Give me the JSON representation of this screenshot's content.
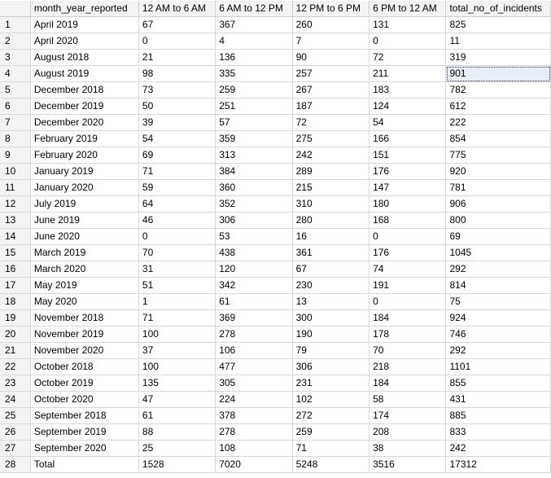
{
  "grid": {
    "columns": [
      "month_year_reported",
      "12 AM to 6 AM",
      "6 AM to 12 PM",
      "12 PM to 6 PM",
      "6 PM to 12 AM",
      "total_no_of_incidents"
    ],
    "rows": [
      {
        "n": "1",
        "cells": [
          "April 2019",
          "67",
          "367",
          "260",
          "131",
          "825"
        ]
      },
      {
        "n": "2",
        "cells": [
          "April 2020",
          "0",
          "4",
          "7",
          "0",
          "11"
        ]
      },
      {
        "n": "3",
        "cells": [
          "August 2018",
          "21",
          "136",
          "90",
          "72",
          "319"
        ]
      },
      {
        "n": "4",
        "cells": [
          "August 2019",
          "98",
          "335",
          "257",
          "211",
          "901"
        ]
      },
      {
        "n": "5",
        "cells": [
          "December 2018",
          "73",
          "259",
          "267",
          "183",
          "782"
        ]
      },
      {
        "n": "6",
        "cells": [
          "December 2019",
          "50",
          "251",
          "187",
          "124",
          "612"
        ]
      },
      {
        "n": "7",
        "cells": [
          "December 2020",
          "39",
          "57",
          "72",
          "54",
          "222"
        ]
      },
      {
        "n": "8",
        "cells": [
          "February 2019",
          "54",
          "359",
          "275",
          "166",
          "854"
        ]
      },
      {
        "n": "9",
        "cells": [
          "February 2020",
          "69",
          "313",
          "242",
          "151",
          "775"
        ]
      },
      {
        "n": "10",
        "cells": [
          "January 2019",
          "71",
          "384",
          "289",
          "176",
          "920"
        ]
      },
      {
        "n": "11",
        "cells": [
          "January 2020",
          "59",
          "360",
          "215",
          "147",
          "781"
        ]
      },
      {
        "n": "12",
        "cells": [
          "July 2019",
          "64",
          "352",
          "310",
          "180",
          "906"
        ]
      },
      {
        "n": "13",
        "cells": [
          "June 2019",
          "46",
          "306",
          "280",
          "168",
          "800"
        ]
      },
      {
        "n": "14",
        "cells": [
          "June 2020",
          "0",
          "53",
          "16",
          "0",
          "69"
        ]
      },
      {
        "n": "15",
        "cells": [
          "March 2019",
          "70",
          "438",
          "361",
          "176",
          "1045"
        ]
      },
      {
        "n": "16",
        "cells": [
          "March 2020",
          "31",
          "120",
          "67",
          "74",
          "292"
        ]
      },
      {
        "n": "17",
        "cells": [
          "May 2019",
          "51",
          "342",
          "230",
          "191",
          "814"
        ]
      },
      {
        "n": "18",
        "cells": [
          "May 2020",
          "1",
          "61",
          "13",
          "0",
          "75"
        ]
      },
      {
        "n": "19",
        "cells": [
          "November 2018",
          "71",
          "369",
          "300",
          "184",
          "924"
        ]
      },
      {
        "n": "20",
        "cells": [
          "November 2019",
          "100",
          "278",
          "190",
          "178",
          "746"
        ]
      },
      {
        "n": "21",
        "cells": [
          "November 2020",
          "37",
          "106",
          "79",
          "70",
          "292"
        ]
      },
      {
        "n": "22",
        "cells": [
          "October 2018",
          "100",
          "477",
          "306",
          "218",
          "1101"
        ]
      },
      {
        "n": "23",
        "cells": [
          "October 2019",
          "135",
          "305",
          "231",
          "184",
          "855"
        ]
      },
      {
        "n": "24",
        "cells": [
          "October 2020",
          "47",
          "224",
          "102",
          "58",
          "431"
        ]
      },
      {
        "n": "25",
        "cells": [
          "September 2018",
          "61",
          "378",
          "272",
          "174",
          "885"
        ]
      },
      {
        "n": "26",
        "cells": [
          "September 2019",
          "88",
          "278",
          "259",
          "208",
          "833"
        ]
      },
      {
        "n": "27",
        "cells": [
          "September 2020",
          "25",
          "108",
          "71",
          "38",
          "242"
        ]
      },
      {
        "n": "28",
        "cells": [
          "Total",
          "1528",
          "7020",
          "5248",
          "3516",
          "17312"
        ]
      }
    ],
    "selected": {
      "row": 3,
      "col": 5
    }
  }
}
